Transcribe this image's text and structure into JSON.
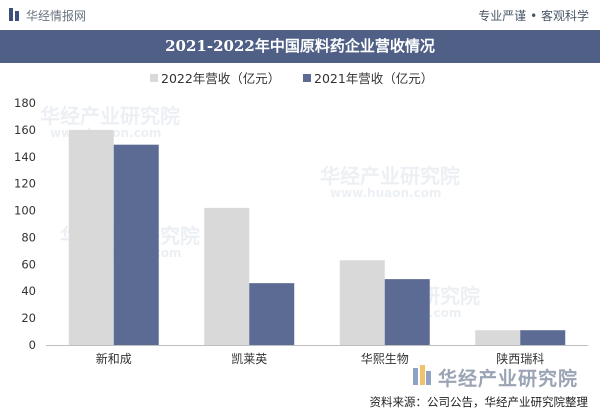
{
  "header": {
    "brand": "华经情报网",
    "slogan": "专业严谨 • 客观科学"
  },
  "chart_data": {
    "type": "bar",
    "title": "2021-2022年中国原料药企业营收情况",
    "categories": [
      "新和成",
      "凯莱英",
      "华熙生物",
      "陕西瑞科"
    ],
    "series": [
      {
        "name": "2022年营收（亿元）",
        "values": [
          160,
          102,
          63,
          11
        ],
        "color": "#d9d9d9"
      },
      {
        "name": "2021年营收（亿元）",
        "values": [
          149,
          46,
          49,
          11
        ],
        "color": "#5b6b93"
      }
    ],
    "ylim": [
      0,
      180
    ],
    "yticks": [
      0,
      20,
      40,
      60,
      80,
      100,
      120,
      140,
      160,
      180
    ],
    "grid": false,
    "legend_position": "top-center"
  },
  "watermark": {
    "text": "华经产业研究院",
    "url": "www.huaon.com"
  },
  "footer": {
    "brand_stamp": "华经产业研究院",
    "source": "资料来源：公司公告，华经产业研究院整理"
  },
  "colors": {
    "title_bar": "#4f5f85",
    "series_2022": "#d9d9d9",
    "series_2021": "#5b6b93"
  }
}
